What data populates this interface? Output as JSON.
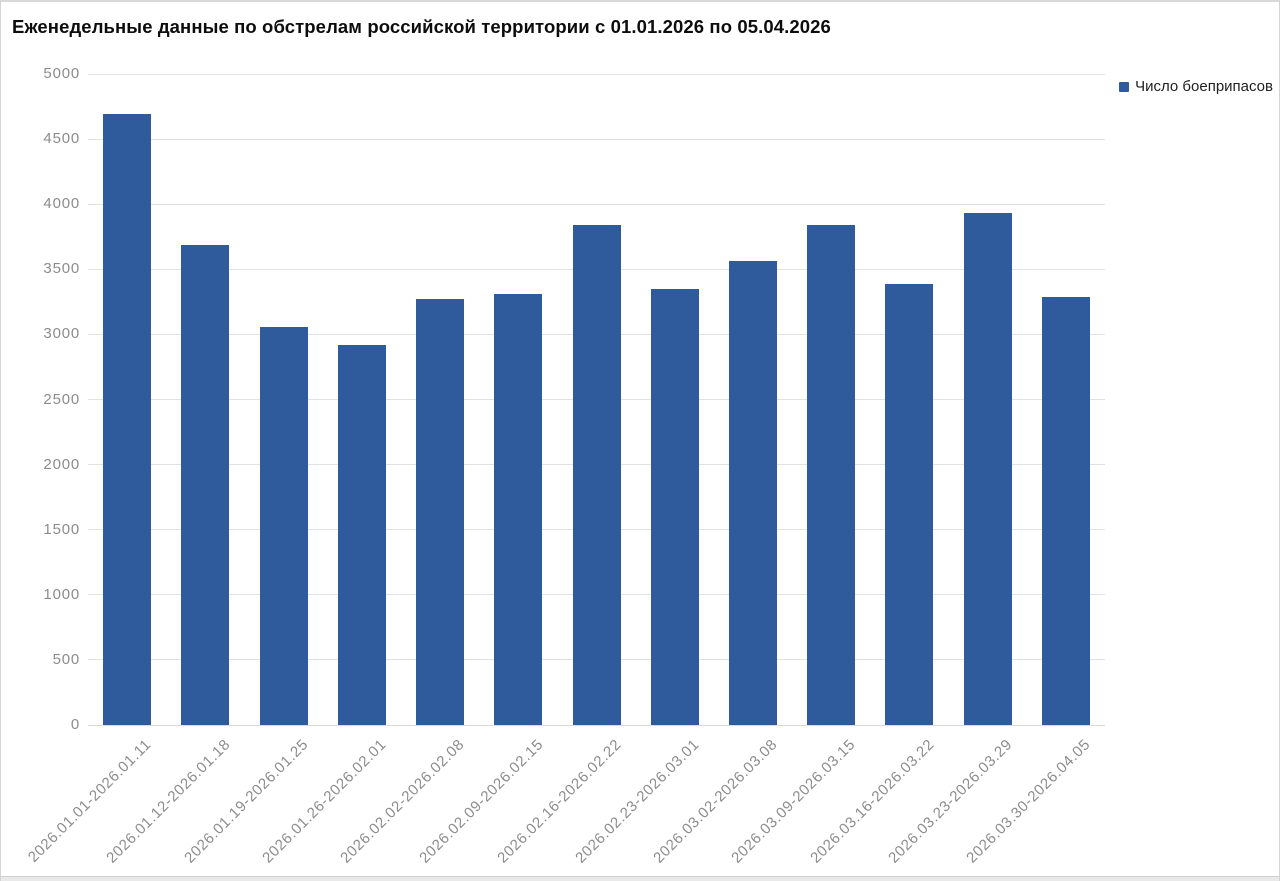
{
  "colors": {
    "bar": "#2f5b9d",
    "grid": "#e2e2e2",
    "zero_line": "#d9d9d9",
    "axis_text": "#8c8c8c",
    "title_text": "#0d0d0d",
    "legend_text": "#1f1f1f",
    "frame": "#d8d8d8"
  },
  "chart_data": {
    "type": "bar",
    "title": "Еженедельные данные по обстрелам российской территории с 01.01.2026 по 05.04.2026",
    "categories": [
      "2026.01.01-2026.01.11",
      "2026.01.12-2026.01.18",
      "2026.01.19-2026.01.25",
      "2026.01.26-2026.02.01",
      "2026.02.02-2026.02.08",
      "2026.02.09-2026.02.15",
      "2026.02.16-2026.02.22",
      "2026.02.23-2026.03.01",
      "2026.03.02-2026.03.08",
      "2026.03.09-2026.03.15",
      "2026.03.16-2026.03.22",
      "2026.03.23-2026.03.29",
      "2026.03.30-2026.04.05"
    ],
    "series": [
      {
        "name": "Число боеприпасов",
        "values": [
          4690,
          3690,
          3060,
          2920,
          3270,
          3310,
          3840,
          3350,
          3560,
          3840,
          3390,
          3930,
          3290
        ]
      }
    ],
    "xlabel": "",
    "ylabel": "",
    "ylim": [
      0,
      5000
    ],
    "yticks": [
      0,
      500,
      1000,
      1500,
      2000,
      2500,
      3000,
      3500,
      4000,
      4500,
      5000
    ],
    "grid": "horizontal",
    "legend_position": "top-right",
    "bar_color": "#2f5b9d"
  }
}
